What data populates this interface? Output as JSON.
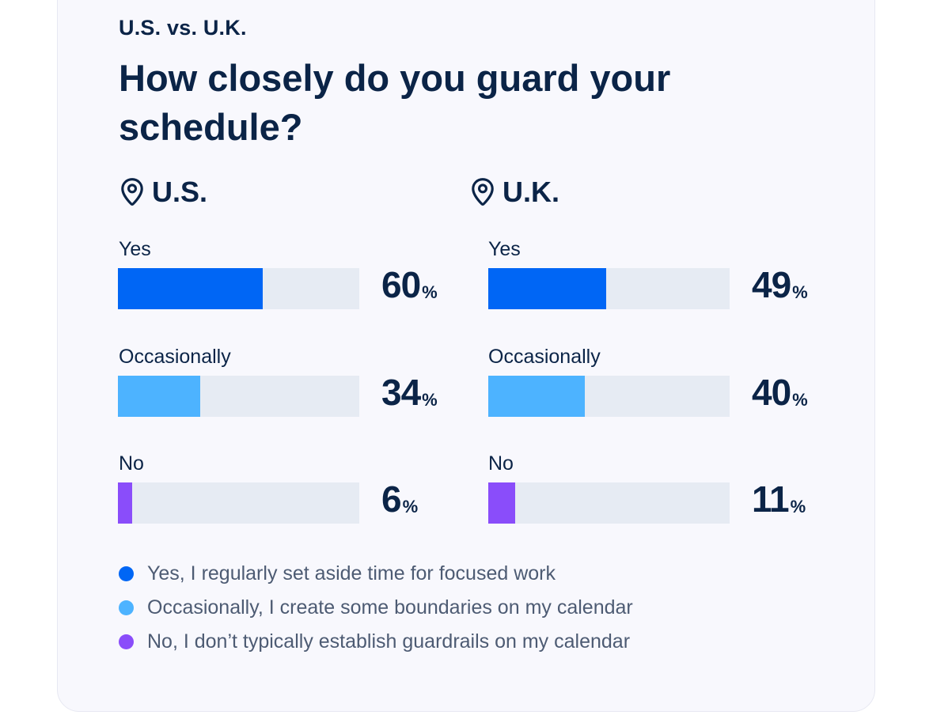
{
  "header": {
    "eyebrow": "U.S. vs. U.K.",
    "title": "How closely do you guard your schedule?"
  },
  "colors": {
    "yes": "#0066f5",
    "occasionally": "#4db3ff",
    "no": "#8a4dfa",
    "track": "#e6ebf3",
    "text": "#0b2447"
  },
  "percent_sign": "%",
  "chart_data": [
    {
      "type": "bar",
      "title": "U.S.",
      "icon": "location-pin-icon",
      "categories": [
        "Yes",
        "Occasionally",
        "No"
      ],
      "values": [
        60,
        34,
        6
      ],
      "ylim": [
        0,
        100
      ]
    },
    {
      "type": "bar",
      "title": "U.K.",
      "icon": "location-pin-icon",
      "categories": [
        "Yes",
        "Occasionally",
        "No"
      ],
      "values": [
        49,
        40,
        11
      ],
      "ylim": [
        0,
        100
      ]
    }
  ],
  "legend": [
    {
      "key": "yes",
      "label": "Yes, I regularly set aside time for focused work"
    },
    {
      "key": "occasionally",
      "label": "Occasionally, I create some boundaries on my calendar"
    },
    {
      "key": "no",
      "label": "No, I don’t typically establish guardrails on my calendar"
    }
  ]
}
